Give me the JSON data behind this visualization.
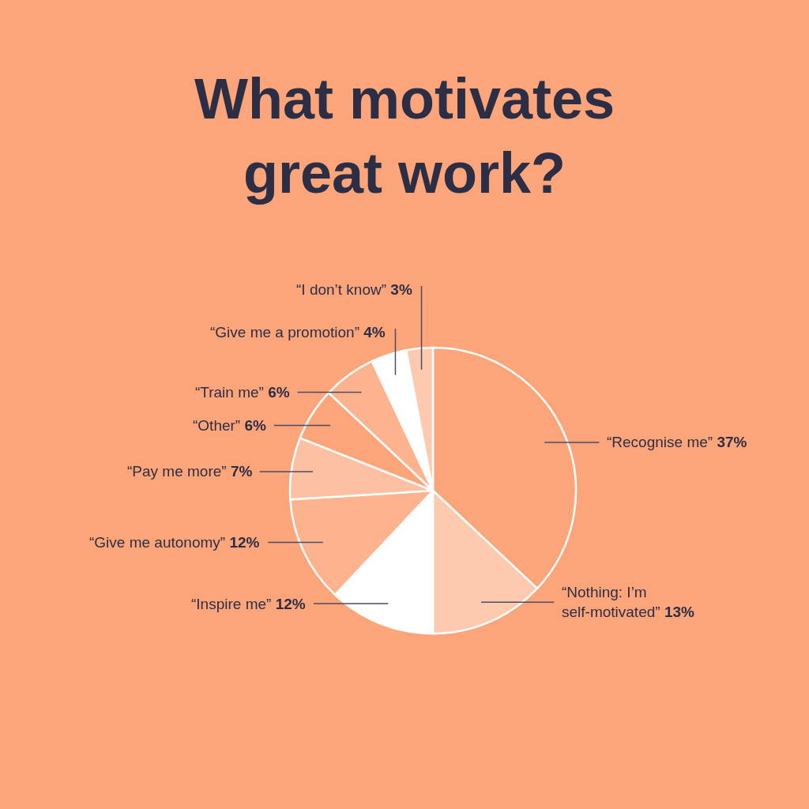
{
  "chart_data": {
    "type": "pie",
    "title": "What motivates great work?",
    "categories": [
      "“Recognise me”",
      "“Nothing: I’m self-motivated”",
      "“Inspire me”",
      "“Give me autonomy”",
      "“Pay me more”",
      "“Other”",
      "“Train me”",
      "“Give me a promotion”",
      "“I don’t know”"
    ],
    "values": [
      37,
      13,
      12,
      12,
      7,
      6,
      6,
      4,
      3
    ],
    "value_labels": [
      "37%",
      "13%",
      "12%",
      "12%",
      "7%",
      "6%",
      "6%",
      "4%",
      "3%"
    ],
    "colors": [
      "#fca57a",
      "#fdc9af",
      "#ffffff",
      "#fcb38e",
      "#fdc0a2",
      "#fca57a",
      "#fcb38e",
      "#ffffff",
      "#fdc9af"
    ]
  }
}
